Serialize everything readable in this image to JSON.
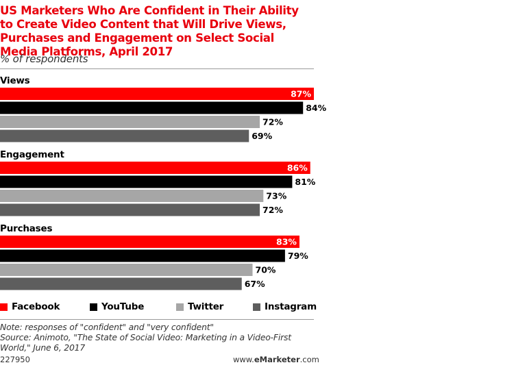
{
  "header": {
    "title": "US Marketers Who Are Confident in Their Ability to Create Video Content that Will Drive Views, Purchases and Engagement on Select Social Media Platforms, April 2017",
    "subtitle": "% of respondents"
  },
  "colors": {
    "accent": "#e8000d",
    "facebook": "#ff0000",
    "youtube": "#000000",
    "twitter": "#a6a6a6",
    "instagram": "#5e5e5e"
  },
  "chart_data": {
    "type": "bar",
    "orientation": "horizontal",
    "title": "US Marketers Who Are Confident in Their Ability to Create Video Content that Will Drive Views, Purchases and Engagement on Select Social Media Platforms, April 2017",
    "subtitle": "% of respondents",
    "xlabel": "",
    "ylabel": "",
    "xlim": [
      0,
      87
    ],
    "grid": false,
    "legend_position": "bottom",
    "categories": [
      "Views",
      "Engagement",
      "Purchases"
    ],
    "series": [
      {
        "name": "Facebook",
        "color": "#ff0000",
        "label_color": "#ffffff",
        "values": [
          87,
          86,
          83
        ]
      },
      {
        "name": "YouTube",
        "color": "#000000",
        "label_color": "#000000",
        "values": [
          84,
          81,
          79
        ]
      },
      {
        "name": "Twitter",
        "color": "#a6a6a6",
        "label_color": "#000000",
        "values": [
          72,
          73,
          70
        ]
      },
      {
        "name": "Instagram",
        "color": "#5e5e5e",
        "label_color": "#000000",
        "values": [
          69,
          72,
          67
        ]
      }
    ],
    "value_suffix": "%"
  },
  "legend": {
    "items": [
      {
        "label": "Facebook",
        "color": "#ff0000"
      },
      {
        "label": "YouTube",
        "color": "#000000"
      },
      {
        "label": "Twitter",
        "color": "#a6a6a6"
      },
      {
        "label": "Instagram",
        "color": "#5e5e5e"
      }
    ]
  },
  "notes": {
    "note": "Note: responses of \"confident\" and \"very confident\"",
    "source": "Source: Animoto, \"The State of Social Video: Marketing in a Video-First World,\" June 6, 2017"
  },
  "footer": {
    "chart_id": "227950",
    "site_prefix": "www.",
    "site_brand": "eMarketer",
    "site_suffix": ".com"
  }
}
